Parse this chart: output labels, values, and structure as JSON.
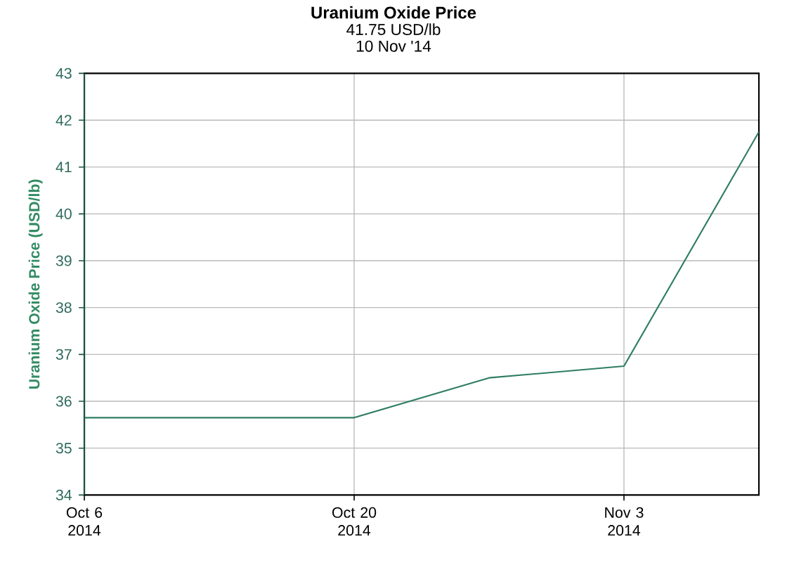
{
  "chart_data": {
    "type": "line",
    "title": "Uranium Oxide Price",
    "subtitle": "41.75 USD/lb",
    "annotations": [
      "10 Nov '14"
    ],
    "ylabel": "Uranium Oxide Price (USD/lb)",
    "x": [
      "2014-10-06",
      "2014-10-20",
      "2014-10-27",
      "2014-11-03",
      "2014-11-10"
    ],
    "values": [
      35.65,
      35.65,
      36.5,
      36.75,
      41.75
    ],
    "color": "#2e7d64",
    "xlim": [
      "2014-10-06",
      "2014-11-10"
    ],
    "xticks": [
      {
        "value": "2014-10-06",
        "label": "Oct 6 2014"
      },
      {
        "value": "2014-10-20",
        "label": "Oct 20 2014"
      },
      {
        "value": "2014-11-03",
        "label": "Nov 3 2014"
      }
    ],
    "ylim": [
      34,
      43
    ],
    "yticks": [
      34,
      35,
      36,
      37,
      38,
      39,
      40,
      41,
      42,
      43
    ],
    "grid": true
  }
}
